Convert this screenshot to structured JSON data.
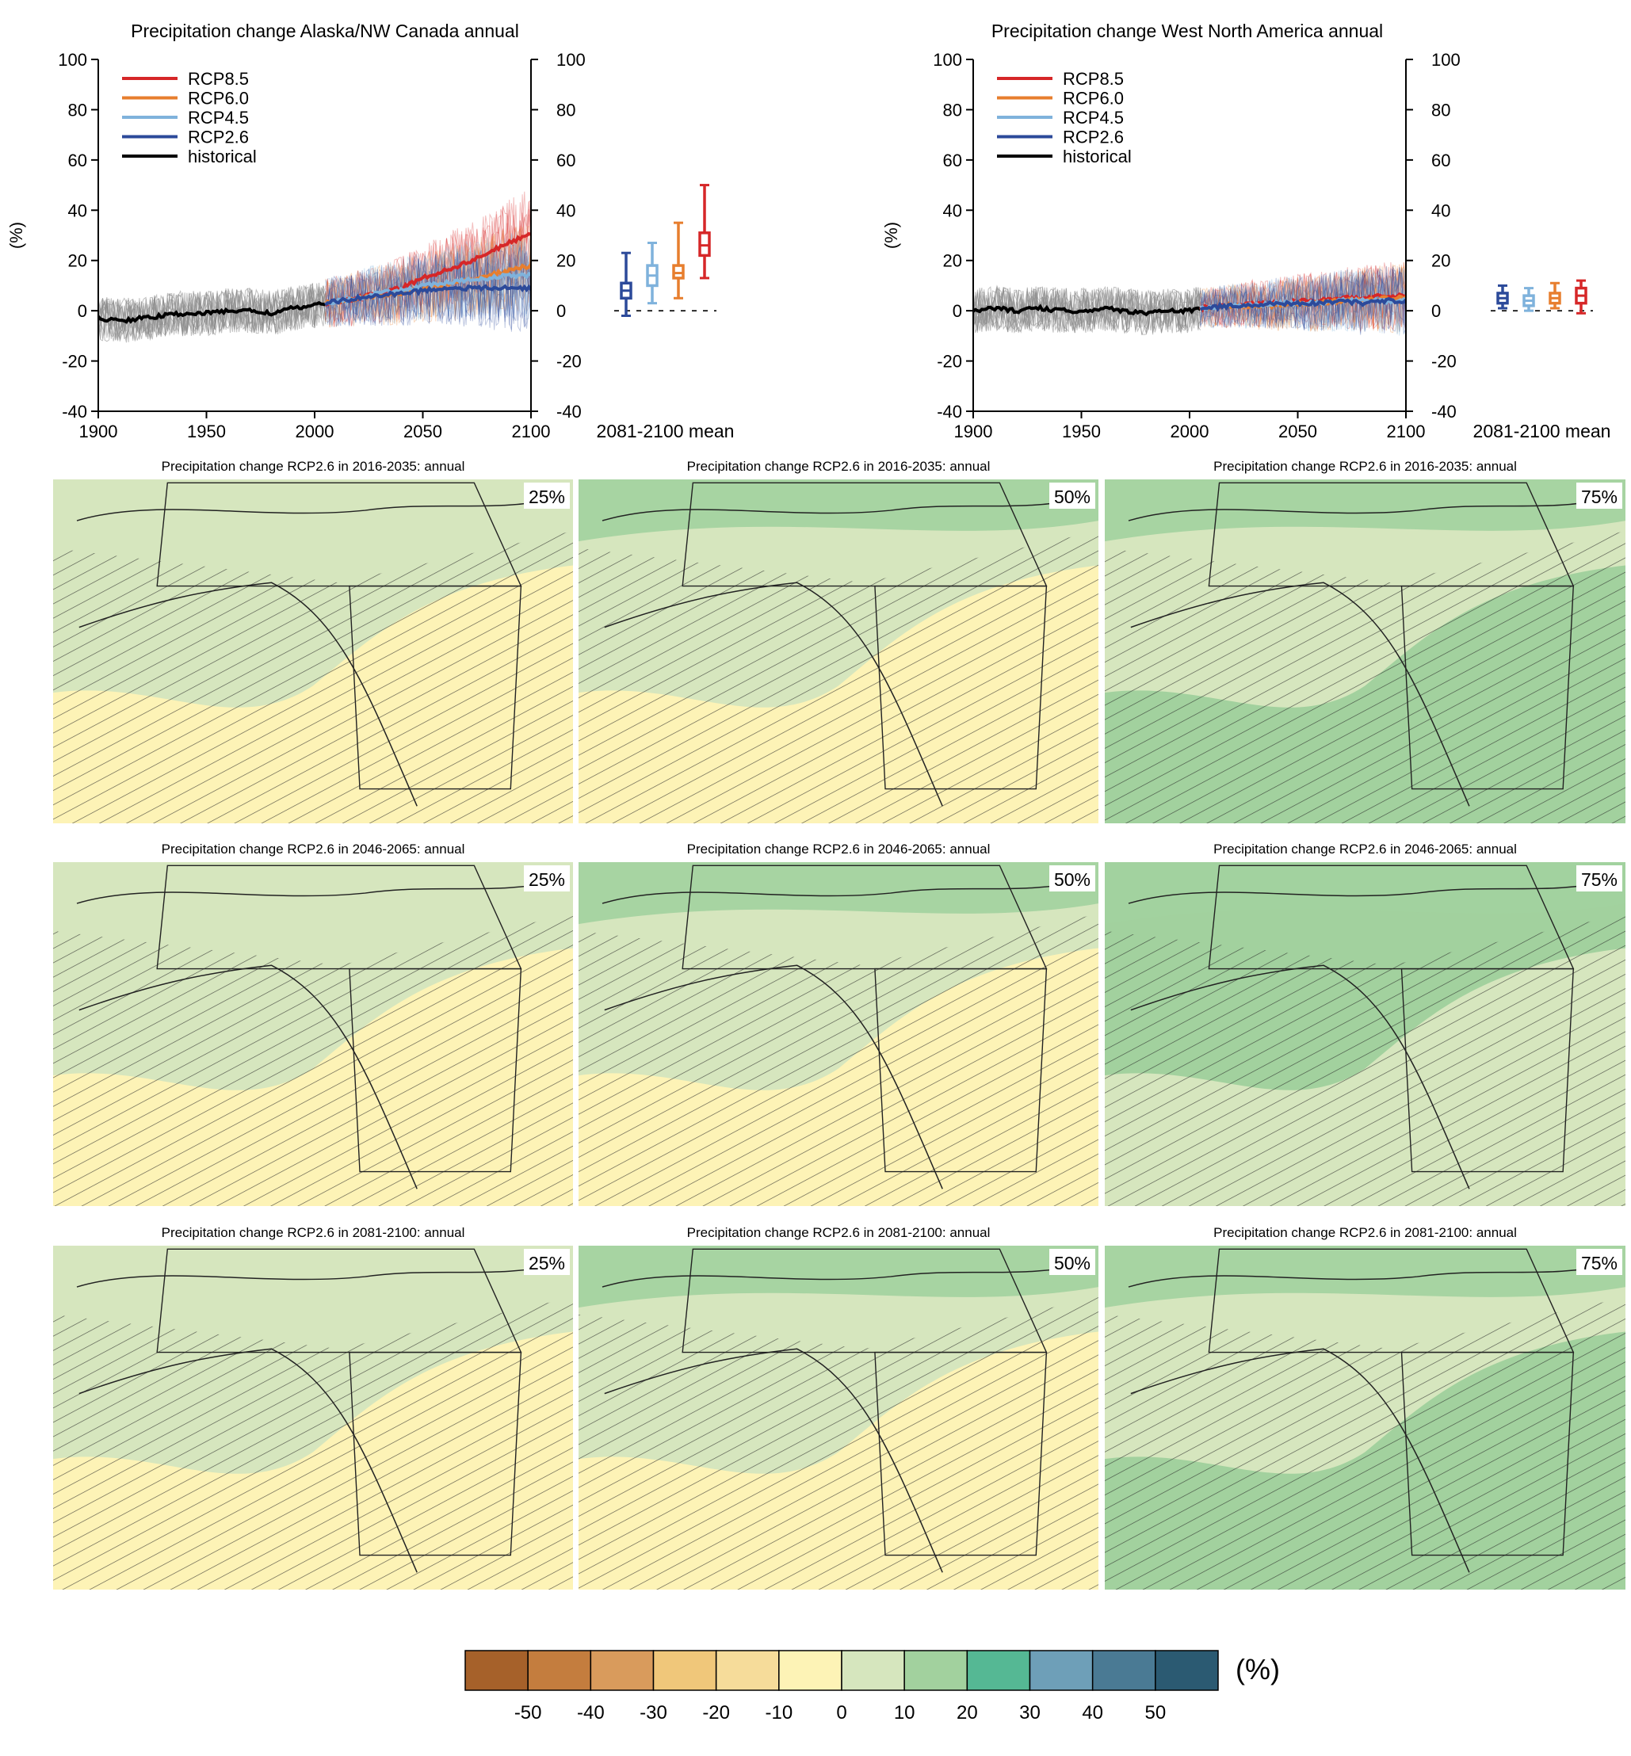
{
  "chart_data": [
    {
      "type": "line",
      "title": "Precipitation change Alaska/NW Canada annual",
      "ylabel": "(%)",
      "xlabel": "",
      "xlim": [
        1900,
        2100
      ],
      "ylim": [
        -40,
        100
      ],
      "xticks": [
        "1900",
        "1950",
        "2000",
        "2050",
        "2100"
      ],
      "yticks": [
        "-40",
        "-20",
        "0",
        "20",
        "40",
        "60",
        "80",
        "100"
      ],
      "legend": [
        "RCP8.5",
        "RCP6.0",
        "RCP4.5",
        "RCP2.6",
        "historical"
      ],
      "legend_position": "top-left",
      "series": [
        {
          "name": "historical",
          "x": [
            1900,
            1910,
            1920,
            1930,
            1940,
            1950,
            1960,
            1970,
            1980,
            1990,
            2000,
            2005
          ],
          "y": [
            -3,
            -4,
            -3,
            -2,
            -1,
            -1,
            0,
            0,
            -1,
            1,
            2,
            3
          ]
        },
        {
          "name": "RCP2.6",
          "x": [
            2005,
            2020,
            2030,
            2040,
            2050,
            2060,
            2070,
            2080,
            2090,
            2100
          ],
          "y": [
            3,
            5,
            6,
            7,
            8,
            9,
            9,
            9,
            9,
            9
          ]
        },
        {
          "name": "RCP4.5",
          "x": [
            2005,
            2020,
            2030,
            2040,
            2050,
            2060,
            2070,
            2080,
            2090,
            2100
          ],
          "y": [
            3,
            5,
            7,
            8,
            10,
            11,
            12,
            13,
            14,
            14
          ]
        },
        {
          "name": "RCP6.0",
          "x": [
            2005,
            2020,
            2030,
            2040,
            2050,
            2060,
            2070,
            2080,
            2090,
            2100
          ],
          "y": [
            3,
            5,
            6,
            7,
            9,
            10,
            12,
            14,
            16,
            18
          ]
        },
        {
          "name": "RCP8.5",
          "x": [
            2005,
            2020,
            2030,
            2040,
            2050,
            2060,
            2070,
            2080,
            2090,
            2100
          ],
          "y": [
            3,
            5,
            7,
            9,
            13,
            16,
            19,
            23,
            27,
            31
          ]
        }
      ],
      "boxplot_label": "2081-2100 mean",
      "boxplots": [
        {
          "name": "RCP2.6",
          "min": -2,
          "q1": 5,
          "median": 8,
          "q3": 11,
          "max": 23
        },
        {
          "name": "RCP4.5",
          "min": 3,
          "q1": 10,
          "median": 14,
          "q3": 18,
          "max": 27
        },
        {
          "name": "RCP6.0",
          "min": 5,
          "q1": 13,
          "median": 15,
          "q3": 18,
          "max": 35
        },
        {
          "name": "RCP8.5",
          "min": 13,
          "q1": 22,
          "median": 26,
          "q3": 31,
          "max": 50
        }
      ]
    },
    {
      "type": "line",
      "title": "Precipitation change West North America annual",
      "ylabel": "(%)",
      "xlabel": "",
      "xlim": [
        1900,
        2100
      ],
      "ylim": [
        -40,
        100
      ],
      "xticks": [
        "1900",
        "1950",
        "2000",
        "2050",
        "2100"
      ],
      "yticks": [
        "-40",
        "-20",
        "0",
        "20",
        "40",
        "60",
        "80",
        "100"
      ],
      "legend": [
        "RCP8.5",
        "RCP6.0",
        "RCP4.5",
        "RCP2.6",
        "historical"
      ],
      "legend_position": "top-left",
      "series": [
        {
          "name": "historical",
          "x": [
            1900,
            1910,
            1920,
            1930,
            1940,
            1950,
            1960,
            1970,
            1980,
            1990,
            2000,
            2005
          ],
          "y": [
            0,
            1,
            0,
            1,
            0,
            0,
            1,
            0,
            -1,
            0,
            0,
            1
          ]
        },
        {
          "name": "RCP2.6",
          "x": [
            2005,
            2020,
            2030,
            2040,
            2050,
            2060,
            2070,
            2080,
            2090,
            2100
          ],
          "y": [
            1,
            2,
            2,
            3,
            3,
            3,
            4,
            3,
            4,
            4
          ]
        },
        {
          "name": "RCP4.5",
          "x": [
            2005,
            2020,
            2030,
            2040,
            2050,
            2060,
            2070,
            2080,
            2090,
            2100
          ],
          "y": [
            1,
            2,
            2,
            3,
            3,
            3,
            4,
            4,
            4,
            4
          ]
        },
        {
          "name": "RCP6.0",
          "x": [
            2005,
            2020,
            2030,
            2040,
            2050,
            2060,
            2070,
            2080,
            2090,
            2100
          ],
          "y": [
            1,
            2,
            2,
            2,
            3,
            3,
            4,
            4,
            5,
            5
          ]
        },
        {
          "name": "RCP8.5",
          "x": [
            2005,
            2020,
            2030,
            2040,
            2050,
            2060,
            2070,
            2080,
            2090,
            2100
          ],
          "y": [
            1,
            2,
            3,
            3,
            4,
            4,
            5,
            5,
            6,
            6
          ]
        }
      ],
      "boxplot_label": "2081-2100 mean",
      "boxplots": [
        {
          "name": "RCP2.6",
          "min": 1,
          "q1": 3,
          "median": 5,
          "q3": 7,
          "max": 10
        },
        {
          "name": "RCP4.5",
          "min": 0,
          "q1": 2,
          "median": 4,
          "q3": 6,
          "max": 9
        },
        {
          "name": "RCP6.0",
          "min": 1,
          "q1": 3,
          "median": 5,
          "q3": 7,
          "max": 11
        },
        {
          "name": "RCP8.5",
          "min": -1,
          "q1": 3,
          "median": 6,
          "q3": 9,
          "max": 12
        }
      ]
    },
    {
      "type": "heatmap",
      "maps": [
        {
          "title": "Precipitation change RCP2.6 in 2016-2035: annual",
          "percentile": "25%"
        },
        {
          "title": "Precipitation change RCP2.6 in 2016-2035: annual",
          "percentile": "50%"
        },
        {
          "title": "Precipitation change RCP2.6 in 2016-2035: annual",
          "percentile": "75%"
        },
        {
          "title": "Precipitation change RCP2.6 in 2046-2065: annual",
          "percentile": "25%"
        },
        {
          "title": "Precipitation change RCP2.6 in 2046-2065: annual",
          "percentile": "50%"
        },
        {
          "title": "Precipitation change RCP2.6 in 2046-2065: annual",
          "percentile": "75%"
        },
        {
          "title": "Precipitation change RCP2.6 in 2081-2100: annual",
          "percentile": "25%"
        },
        {
          "title": "Precipitation change RCP2.6 in 2081-2100: annual",
          "percentile": "50%"
        },
        {
          "title": "Precipitation change RCP2.6 in 2081-2100: annual",
          "percentile": "75%"
        }
      ],
      "colorbar": {
        "unit": "(%)",
        "ticks": [
          "-50",
          "-40",
          "-30",
          "-20",
          "-10",
          "0",
          "10",
          "20",
          "30",
          "40",
          "50"
        ],
        "colors": [
          "#a6612a",
          "#c47d3e",
          "#d99b5c",
          "#f0c77a",
          "#f6dc9a",
          "#fdf3b6",
          "#d6e6be",
          "#a2d19e",
          "#55b894",
          "#6e9fb8",
          "#4a7a94",
          "#2b5a72"
        ]
      }
    }
  ],
  "colors": {
    "RCP8.5": "#d62728",
    "RCP6.0": "#e77e2e",
    "RCP4.5": "#7fb2dc",
    "RCP2.6": "#2c4a9a",
    "historical": "#000000",
    "ensemble": "#8a8a8a",
    "land_neg": "#fdf3b6",
    "land_pos1": "#d6e6be",
    "land_pos2": "#a2d19e",
    "land_pos3": "#55b894"
  }
}
